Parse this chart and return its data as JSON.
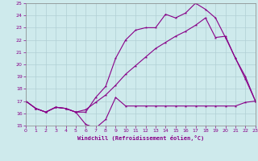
{
  "xlabel": "Windchill (Refroidissement éolien,°C)",
  "x_ticks": [
    0,
    1,
    2,
    3,
    4,
    5,
    6,
    7,
    8,
    9,
    10,
    11,
    12,
    13,
    14,
    15,
    16,
    17,
    18,
    19,
    20,
    21,
    22,
    23
  ],
  "ylim": [
    15,
    25
  ],
  "xlim": [
    0,
    23
  ],
  "yticks": [
    15,
    16,
    17,
    18,
    19,
    20,
    21,
    22,
    23,
    24,
    25
  ],
  "bg_color": "#ceeaec",
  "grid_color": "#b0d0d4",
  "line_color": "#880088",
  "line1_y": [
    17.0,
    16.4,
    16.1,
    16.5,
    16.4,
    16.1,
    15.1,
    14.8,
    15.5,
    17.3,
    16.6,
    16.6,
    16.6,
    16.6,
    16.6,
    16.6,
    16.6,
    16.6,
    16.6,
    16.6,
    16.6,
    16.6,
    16.9,
    17.0
  ],
  "line2_y": [
    17.0,
    16.4,
    16.1,
    16.5,
    16.4,
    16.1,
    16.1,
    17.3,
    18.2,
    20.5,
    22.0,
    22.8,
    23.0,
    23.0,
    24.1,
    23.8,
    24.2,
    25.0,
    24.5,
    23.8,
    22.2,
    20.5,
    18.8,
    17.0
  ],
  "line3_y": [
    17.0,
    16.4,
    16.1,
    16.5,
    16.4,
    16.1,
    16.3,
    16.9,
    17.5,
    18.3,
    19.2,
    19.9,
    20.6,
    21.3,
    21.8,
    22.3,
    22.7,
    23.2,
    23.8,
    22.2,
    22.3,
    20.5,
    19.0,
    17.0
  ]
}
